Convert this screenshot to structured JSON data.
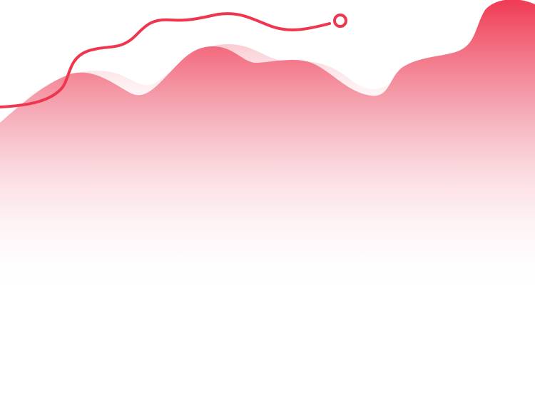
{
  "illustration": {
    "subject": "wave-area-with-trend-line",
    "colors": {
      "accent": "#f0364f",
      "area_top": "#f03a52",
      "area_mid": "#f4a7b4",
      "area_bottom": "#ffffff",
      "shadow": "#f9c6cc",
      "marker_fill": "#ffffff"
    },
    "icons": {
      "end_marker": "circle-marker-icon"
    }
  }
}
